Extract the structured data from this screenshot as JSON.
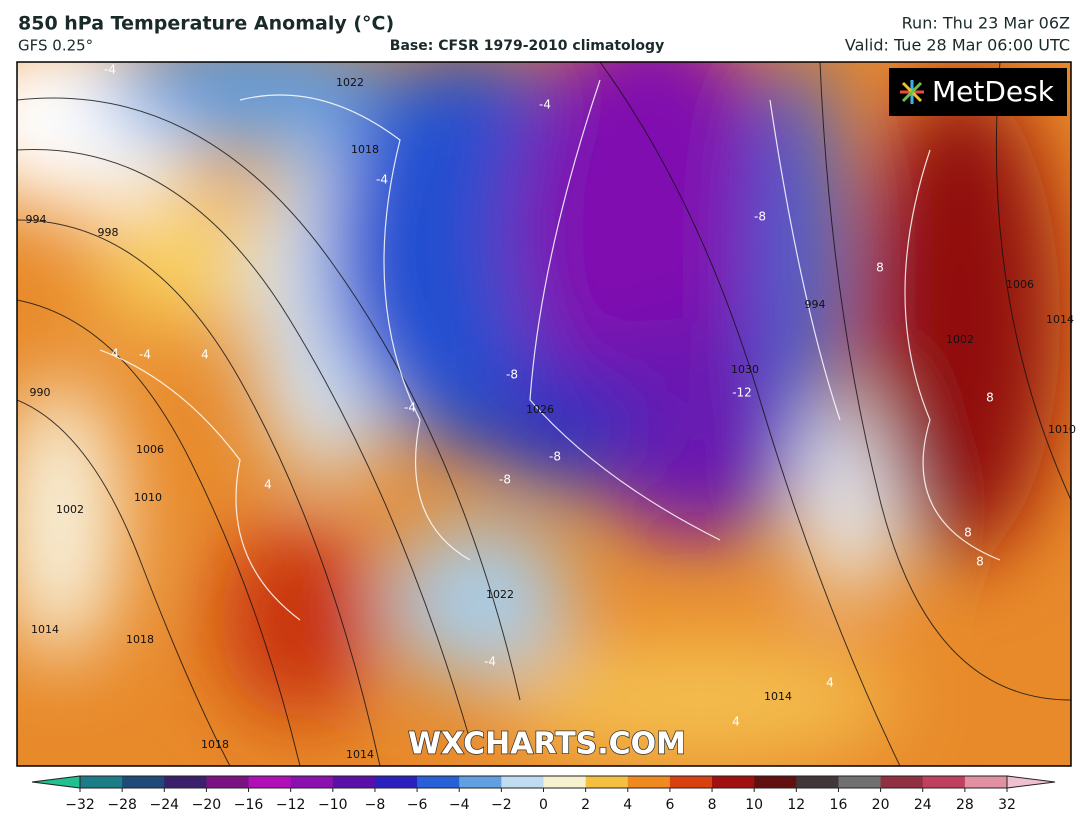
{
  "header": {
    "title": "850 hPa Temperature Anomaly (°C)",
    "model": "GFS 0.25°",
    "base": "Base: CFSR 1979-2010 climatology",
    "run": "Run: Thu 23 Mar 06Z",
    "valid": "Valid: Tue 28 Mar 06:00 UTC"
  },
  "logo": "MetDesk",
  "watermark": "WXCHARTS.COM",
  "map": {
    "isobar_labels": [
      "1022",
      "1018",
      "994",
      "998",
      "990",
      "1006",
      "1002",
      "1010",
      "1014",
      "1018",
      "1022",
      "1026",
      "1030",
      "994",
      "1006",
      "1002",
      "1014",
      "1010",
      "1014",
      "1018",
      "1014"
    ],
    "anomaly_labels": [
      "-4",
      "-4",
      "-4",
      "-8",
      "-8",
      "-4",
      "-12",
      "-8",
      "-8",
      "-4",
      "-4",
      "8",
      "8",
      "8",
      "8",
      "4",
      "4",
      "4",
      "4",
      "4"
    ]
  },
  "colorbar": {
    "ticks": [
      {
        "value": -32,
        "label": "−32"
      },
      {
        "value": -28,
        "label": "−28"
      },
      {
        "value": -24,
        "label": "−24"
      },
      {
        "value": -20,
        "label": "−20"
      },
      {
        "value": -16,
        "label": "−16"
      },
      {
        "value": -12,
        "label": "−12"
      },
      {
        "value": -10,
        "label": "−10"
      },
      {
        "value": -8,
        "label": "−8"
      },
      {
        "value": -6,
        "label": "−6"
      },
      {
        "value": -4,
        "label": "−4"
      },
      {
        "value": -2,
        "label": "−2"
      },
      0,
      2,
      4,
      6,
      8,
      10,
      12,
      16,
      20,
      24,
      28,
      32
    ],
    "colors": [
      "#20c090",
      "#1d7d86",
      "#1f4a78",
      "#3a1f6b",
      "#7a1282",
      "#b010b8",
      "#8a10b0",
      "#5a10a8",
      "#2a20c0",
      "#2860d8",
      "#60a0e0",
      "#c0dcf0",
      "#f6f2d0",
      "#f5c040",
      "#f08a20",
      "#d84010",
      "#a01010",
      "#601010",
      "#403838",
      "#707070",
      "#903040",
      "#c04060",
      "#e090a0",
      "#f0c0d0"
    ]
  }
}
